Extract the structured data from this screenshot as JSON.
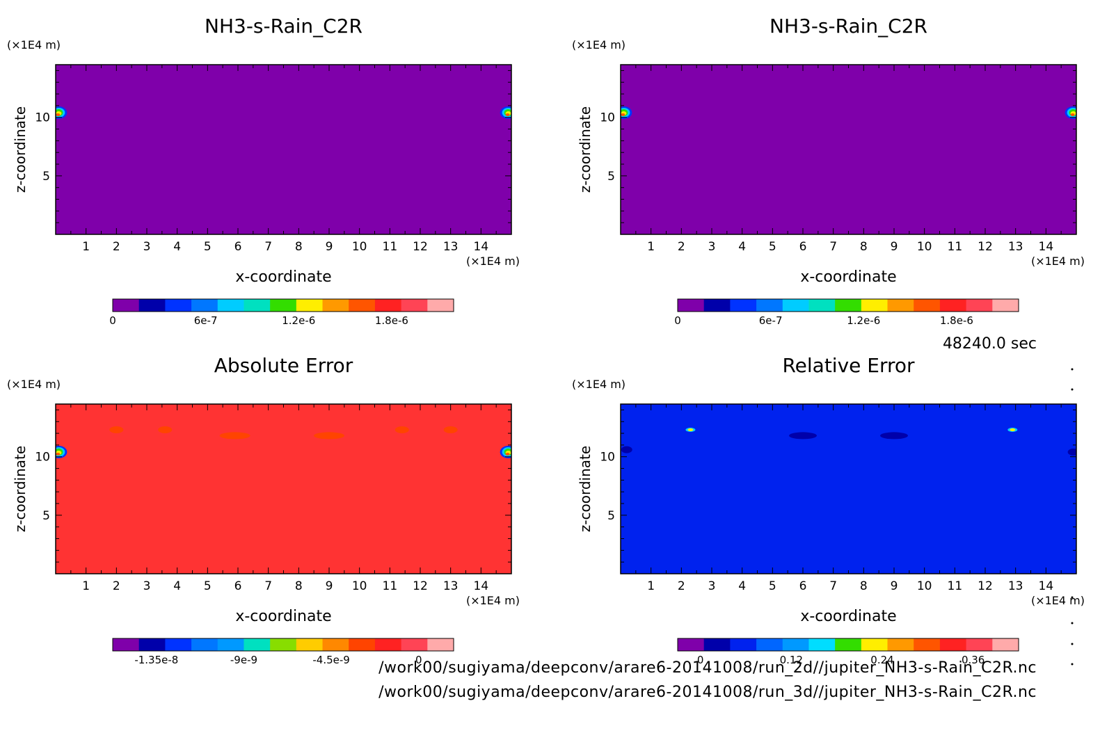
{
  "time_label": "48240.0 sec",
  "file_paths": [
    "/work00/sugiyama/deepconv/arare6-20141008/run_2d//jupiter_NH3-s-Rain_C2R.nc",
    "/work00/sugiyama/deepconv/arare6-20141008/run_3d//jupiter_NH3-s-Rain_C2R.nc"
  ],
  "chart_data": [
    {
      "type": "heatmap",
      "title": "NH3-s-Rain_C2R",
      "xlabel": "x-coordinate",
      "ylabel": "z-coordinate",
      "x_unit": "(×1E4 m)",
      "y_unit": "(×1E4 m)",
      "xlim": [
        0,
        15
      ],
      "ylim": [
        0,
        14.5
      ],
      "x_ticks": [
        "1",
        "2",
        "3",
        "4",
        "5",
        "6",
        "7",
        "8",
        "9",
        "10",
        "11",
        "12",
        "13",
        "14"
      ],
      "y_ticks": [
        "5",
        "10"
      ],
      "background_color": "#7f00aa",
      "colorbar": {
        "colors": [
          "#7f00aa",
          "#0000aa",
          "#0033ff",
          "#0077ff",
          "#00ccff",
          "#00e0c0",
          "#33dd00",
          "#ffee00",
          "#ff9900",
          "#ff5500",
          "#ff2222",
          "#ff4455",
          "#ffaaaa"
        ],
        "tick_labels": [
          "0",
          "6e-7",
          "1.2e-6",
          "1.8e-6"
        ],
        "tick_values": [
          0,
          6e-07,
          1.2e-06,
          1.8e-06
        ],
        "range": [
          0,
          2.2e-06
        ]
      },
      "features": [
        {
          "x": 0.1,
          "z": 10.4,
          "peak_color": "#ffee00"
        },
        {
          "x": 14.9,
          "z": 10.4,
          "peak_color": "#ffee00"
        }
      ]
    },
    {
      "type": "heatmap",
      "title": "NH3-s-Rain_C2R",
      "xlabel": "x-coordinate",
      "ylabel": "z-coordinate",
      "x_unit": "(×1E4 m)",
      "y_unit": "(×1E4 m)",
      "xlim": [
        0,
        15
      ],
      "ylim": [
        0,
        14.5
      ],
      "x_ticks": [
        "1",
        "2",
        "3",
        "4",
        "5",
        "6",
        "7",
        "8",
        "9",
        "10",
        "11",
        "12",
        "13",
        "14"
      ],
      "y_ticks": [
        "5",
        "10"
      ],
      "background_color": "#7f00aa",
      "colorbar": {
        "colors": [
          "#7f00aa",
          "#0000aa",
          "#0033ff",
          "#0077ff",
          "#00ccff",
          "#00e0c0",
          "#33dd00",
          "#ffee00",
          "#ff9900",
          "#ff5500",
          "#ff2222",
          "#ff4455",
          "#ffaaaa"
        ],
        "tick_labels": [
          "0",
          "6e-7",
          "1.2e-6",
          "1.8e-6"
        ],
        "tick_values": [
          0,
          6e-07,
          1.2e-06,
          1.8e-06
        ],
        "range": [
          0,
          2.2e-06
        ]
      },
      "features": [
        {
          "x": 0.1,
          "z": 10.4,
          "peak_color": "#ffee00"
        },
        {
          "x": 14.9,
          "z": 10.4,
          "peak_color": "#ffee00"
        }
      ]
    },
    {
      "type": "heatmap",
      "title": "Absolute Error",
      "xlabel": "x-coordinate",
      "ylabel": "z-coordinate",
      "x_unit": "(×1E4 m)",
      "y_unit": "(×1E4 m)",
      "xlim": [
        0,
        15
      ],
      "ylim": [
        0,
        14.5
      ],
      "x_ticks": [
        "1",
        "2",
        "3",
        "4",
        "5",
        "6",
        "7",
        "8",
        "9",
        "10",
        "11",
        "12",
        "13",
        "14"
      ],
      "y_ticks": [
        "5",
        "10"
      ],
      "background_color": "#ff3333",
      "colorbar": {
        "colors": [
          "#7f00aa",
          "#0000aa",
          "#0033ff",
          "#0077ff",
          "#0099ff",
          "#00e0c0",
          "#88dd00",
          "#ffcc00",
          "#ff8800",
          "#ff4400",
          "#ff2222",
          "#ff4455",
          "#ffaaaa"
        ],
        "tick_labels": [
          "-1.35e-8",
          "-9e-9",
          "-4.5e-9",
          "0"
        ],
        "tick_values": [
          -1.35e-08,
          -9e-09,
          -4.5e-09,
          0
        ],
        "range": [
          -1.575e-08,
          1.8e-09
        ]
      },
      "features": [
        {
          "x": 0.1,
          "z": 10.4,
          "peak_color": "#ffee00"
        },
        {
          "x": 14.9,
          "z": 10.4,
          "peak_color": "#ffee00"
        },
        {
          "x": 2.0,
          "z": 12.3,
          "peak_color": "#ff4400"
        },
        {
          "x": 3.6,
          "z": 12.3,
          "peak_color": "#ff4400"
        },
        {
          "x": 5.9,
          "z": 11.8,
          "peak_color": "#ff4400"
        },
        {
          "x": 9.0,
          "z": 11.8,
          "peak_color": "#ff4400"
        },
        {
          "x": 11.4,
          "z": 12.3,
          "peak_color": "#ff4400"
        },
        {
          "x": 13.0,
          "z": 12.3,
          "peak_color": "#ff4400"
        }
      ]
    },
    {
      "type": "heatmap",
      "title": "Relative Error",
      "xlabel": "x-coordinate",
      "ylabel": "z-coordinate",
      "x_unit": "(×1E4 m)",
      "y_unit": "(×1E4 m)",
      "xlim": [
        0,
        15
      ],
      "ylim": [
        0,
        14.5
      ],
      "x_ticks": [
        "1",
        "2",
        "3",
        "4",
        "5",
        "6",
        "7",
        "8",
        "9",
        "10",
        "11",
        "12",
        "13",
        "14"
      ],
      "y_ticks": [
        "5",
        "10"
      ],
      "background_color": "#0022ee",
      "colorbar": {
        "colors": [
          "#7f00aa",
          "#0000aa",
          "#0022ee",
          "#0066ff",
          "#0099ff",
          "#00ddff",
          "#33dd00",
          "#ffee00",
          "#ff9900",
          "#ff5500",
          "#ff2222",
          "#ff4455",
          "#ffaaaa"
        ],
        "tick_labels": [
          "0",
          "0.12",
          "0.24",
          "0.36"
        ],
        "tick_values": [
          0,
          0.12,
          0.24,
          0.36
        ],
        "range": [
          -0.03,
          0.42
        ]
      },
      "features": [
        {
          "x": 2.3,
          "z": 12.3,
          "peak_color": "#ffee00"
        },
        {
          "x": 12.9,
          "z": 12.3,
          "peak_color": "#ffee00"
        },
        {
          "x": 6.0,
          "z": 11.8,
          "peak_color": "#0000aa"
        },
        {
          "x": 9.0,
          "z": 11.8,
          "peak_color": "#0000aa"
        },
        {
          "x": 0.2,
          "z": 10.6,
          "peak_color": "#0000aa"
        },
        {
          "x": 14.9,
          "z": 10.4,
          "peak_color": "#0000aa"
        }
      ]
    }
  ]
}
